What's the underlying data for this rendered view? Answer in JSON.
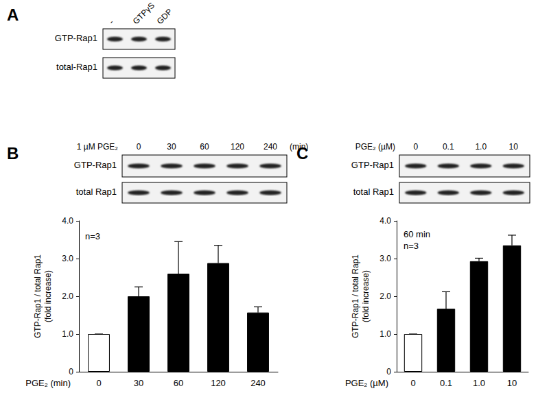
{
  "panels": [
    {
      "letter": "A",
      "lane_labels": [
        "-",
        "GTPγS",
        "GDP"
      ],
      "rows": [
        "GTP-Rap1",
        "total-Rap1"
      ]
    },
    {
      "letter": "B",
      "header": "1 µM PGE₂",
      "lane_labels": [
        "0",
        "30",
        "60",
        "120",
        "240"
      ],
      "unit": "(min)",
      "rows": [
        "GTP-Rap1",
        "total Rap1"
      ]
    },
    {
      "letter": "C",
      "header": "PGE₂ (µM)",
      "lane_labels": [
        "0",
        "0.1",
        "1.0",
        "10"
      ],
      "rows": [
        "GTP-Rap1",
        "total Rap1"
      ]
    }
  ],
  "chart_data": [
    {
      "type": "bar",
      "x_label": "PGE₂ (min)",
      "y_label": "GTP-Rap1 / total Rap1\n(fold increase)",
      "categories": [
        "0",
        "30",
        "60",
        "120",
        "240"
      ],
      "values": [
        1.0,
        2.0,
        2.6,
        2.88,
        1.57
      ],
      "errors": [
        0,
        0.25,
        0.85,
        0.47,
        0.15
      ],
      "colors": [
        "#ffffff",
        "#000000",
        "#000000",
        "#000000",
        "#000000"
      ],
      "ylim": [
        0,
        4
      ],
      "yticks": [
        0,
        {
          "value": 1,
          "label": "1.0"
        },
        {
          "value": 2,
          "label": "2.0"
        },
        {
          "value": 3,
          "label": "3.0"
        },
        {
          "value": 4,
          "label": "4.0"
        }
      ],
      "grid": false,
      "annotations": [
        "n=3"
      ]
    },
    {
      "type": "bar",
      "x_label": "PGE₂ (µM)",
      "y_label": "GTP-Rap1 / total Rap1\n(fold increase)",
      "categories": [
        "0",
        "0.1",
        "1.0",
        "10"
      ],
      "values": [
        1.0,
        1.67,
        2.93,
        3.35
      ],
      "errors": [
        0,
        0.45,
        0.08,
        0.27
      ],
      "colors": [
        "#ffffff",
        "#000000",
        "#000000",
        "#000000"
      ],
      "ylim": [
        0,
        4
      ],
      "yticks": [
        0,
        {
          "value": 1,
          "label": "1.0"
        },
        {
          "value": 2,
          "label": "2.0"
        },
        {
          "value": 3,
          "label": "3.0"
        },
        {
          "value": 4,
          "label": "4.0"
        }
      ],
      "grid": false,
      "annotations": [
        "60 min",
        "n=3"
      ]
    }
  ]
}
